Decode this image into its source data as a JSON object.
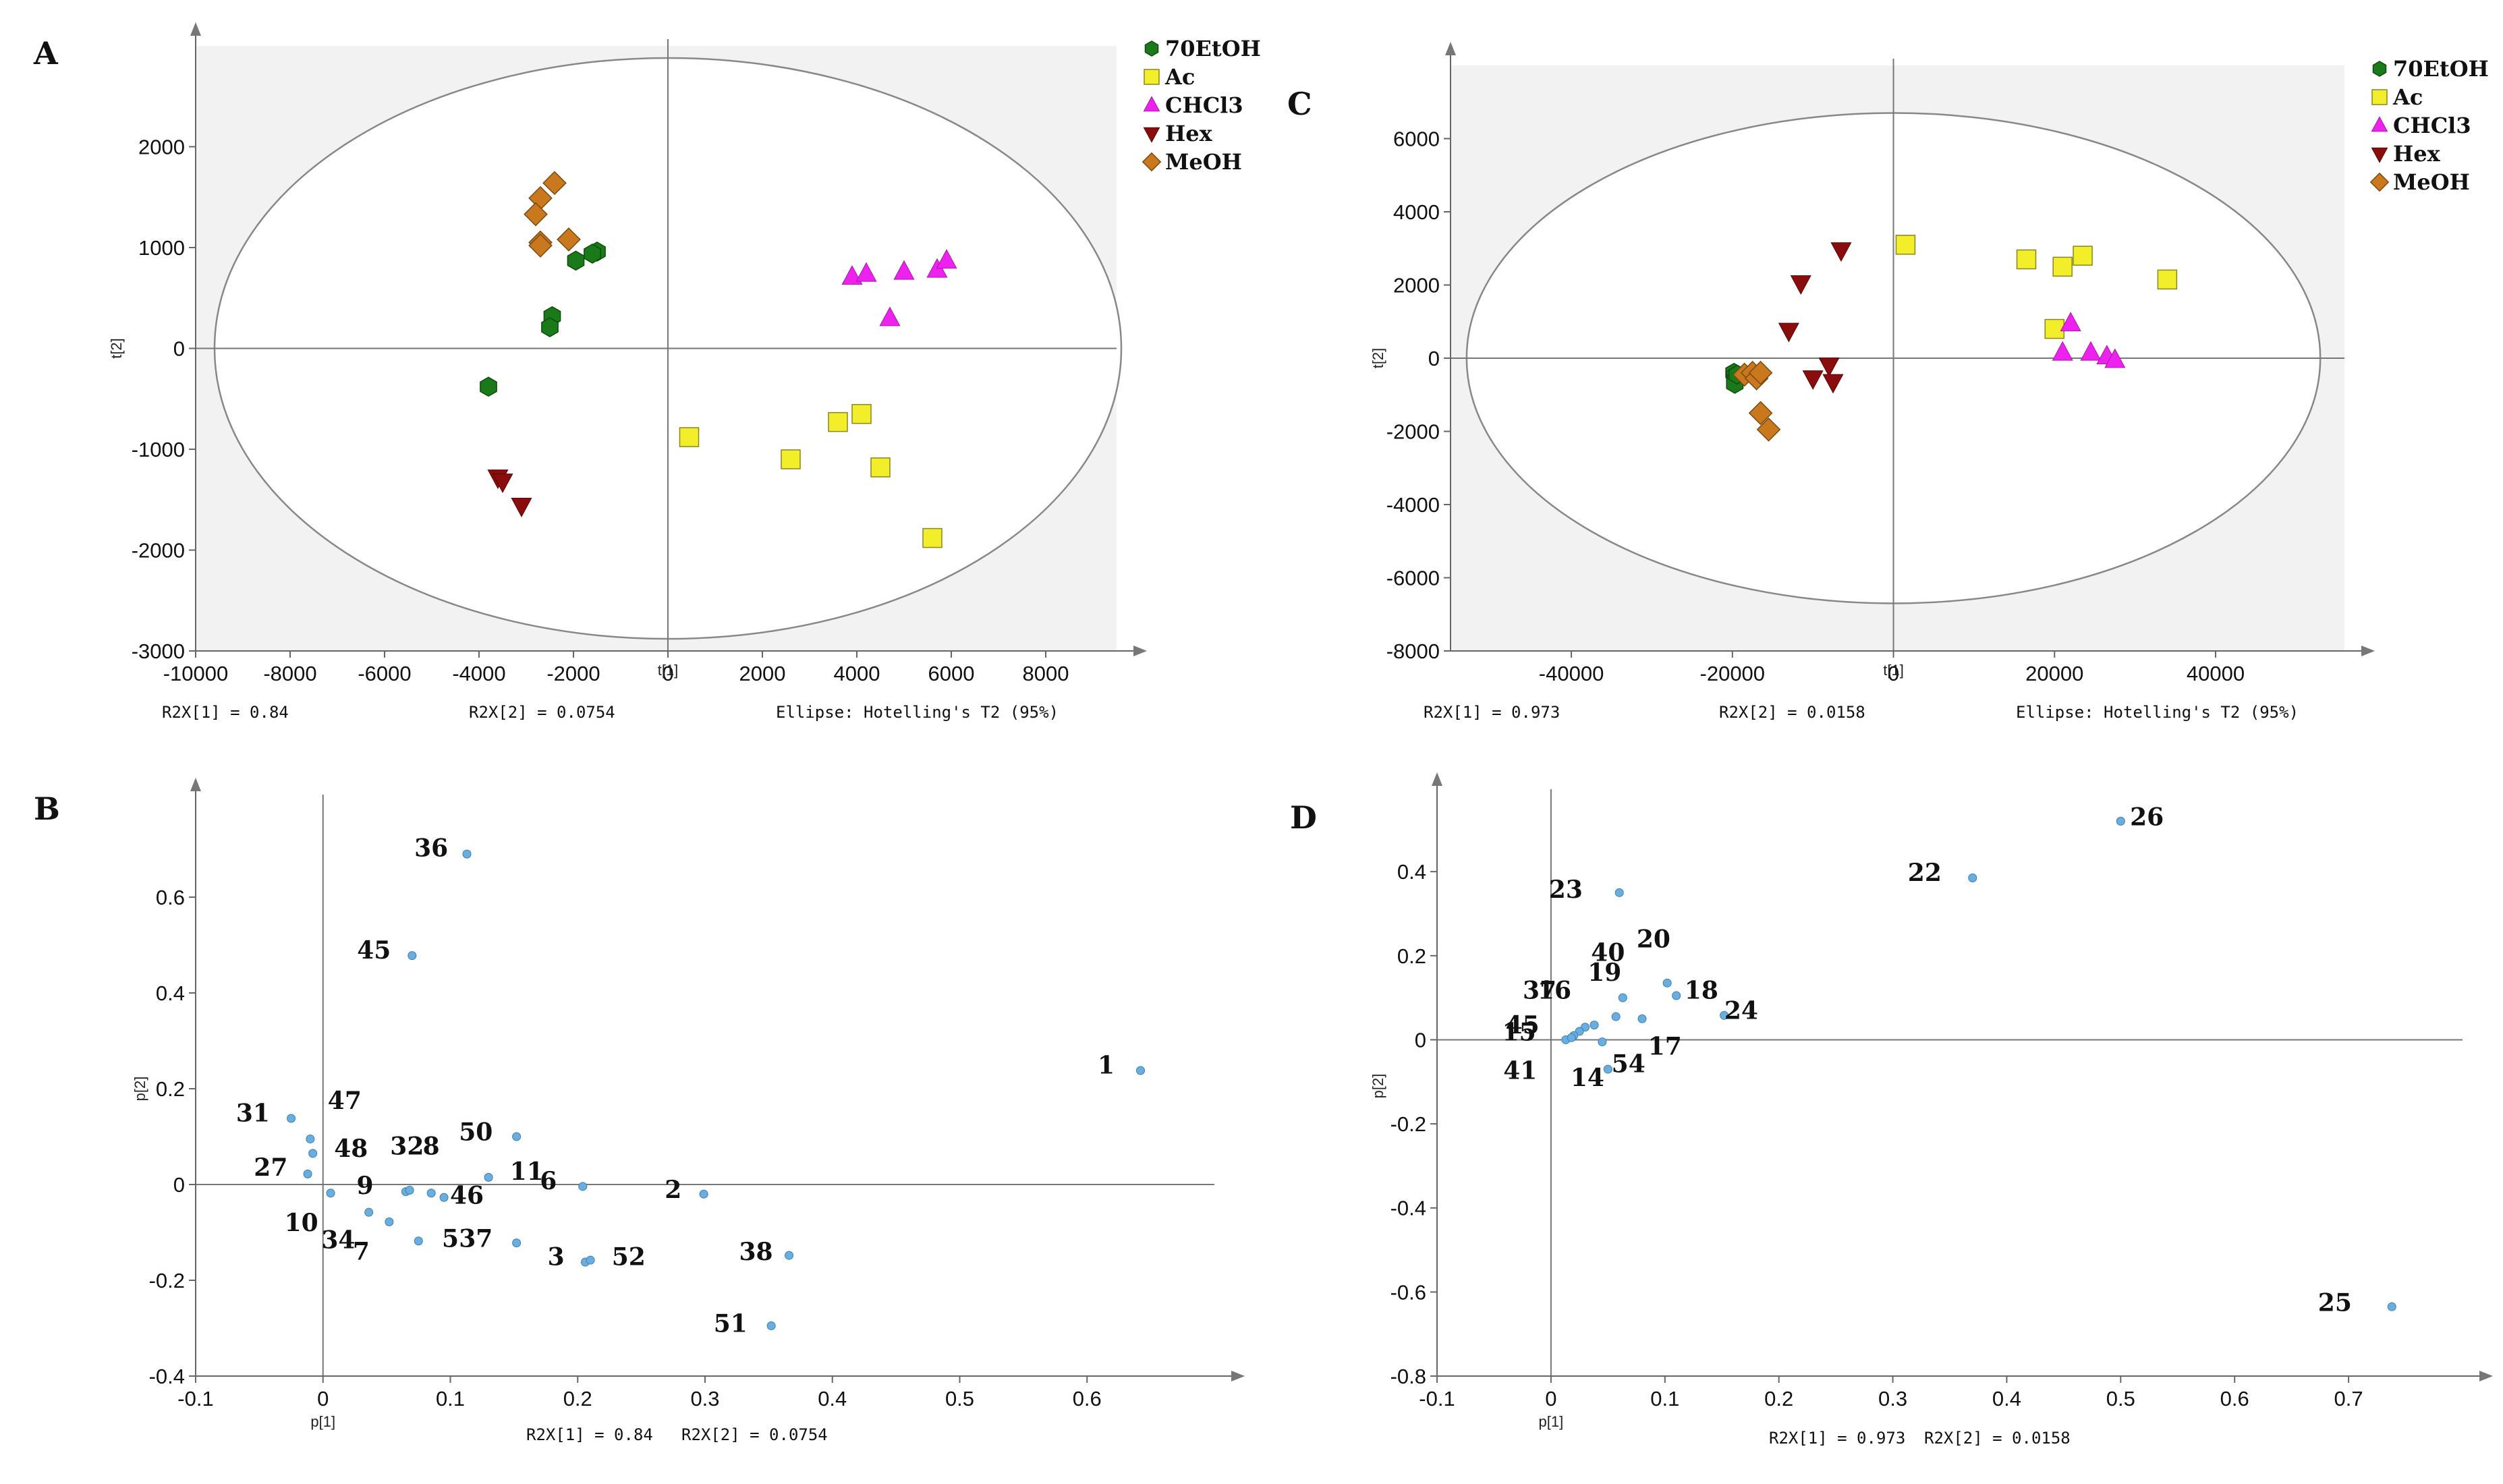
{
  "chart_data": [
    {
      "id": "A",
      "type": "scatter",
      "letter": "A",
      "xlabel": "t[1]",
      "ylabel": "t[2]",
      "xlim": [
        -10000,
        9500
      ],
      "ylim": [
        -3000,
        3000
      ],
      "xticks": [
        -10000,
        -8000,
        -6000,
        -4000,
        -2000,
        0,
        2000,
        4000,
        6000,
        8000
      ],
      "yticks": [
        -3000,
        -2000,
        -1000,
        0,
        1000,
        2000
      ],
      "ellipse": {
        "rx": 9600,
        "ry": 2880
      },
      "footer": {
        "r2x1": "R2X[1] = 0.84",
        "r2x2": "R2X[2] = 0.0754",
        "ellipse": "Ellipse: Hotelling's T2 (95%)"
      },
      "legend": [
        {
          "name": "70EtOH",
          "marker": "hexagon",
          "color": "#1a7a1a"
        },
        {
          "name": "Ac",
          "marker": "square",
          "color": "#f2ee2a"
        },
        {
          "name": "CHCl3",
          "marker": "triangle-up",
          "color": "#ee22ee"
        },
        {
          "name": "Hex",
          "marker": "triangle-down",
          "color": "#8a0d0d"
        },
        {
          "name": "MeOH",
          "marker": "diamond",
          "color": "#c9781e"
        }
      ],
      "series": [
        {
          "name": "70EtOH",
          "points": [
            [
              -1500,
              960
            ],
            [
              -1600,
              940
            ],
            [
              -1950,
              870
            ],
            [
              -2450,
              320
            ],
            [
              -2500,
              210
            ],
            [
              -3800,
              -380
            ]
          ]
        },
        {
          "name": "Ac",
          "points": [
            [
              450,
              -880
            ],
            [
              2600,
              -1100
            ],
            [
              3600,
              -730
            ],
            [
              4100,
              -650
            ],
            [
              4500,
              -1180
            ],
            [
              5600,
              -1880
            ]
          ]
        },
        {
          "name": "CHCl3",
          "points": [
            [
              3900,
              710
            ],
            [
              4200,
              740
            ],
            [
              5000,
              760
            ],
            [
              5700,
              780
            ],
            [
              5900,
              870
            ],
            [
              4700,
              300
            ]
          ]
        },
        {
          "name": "Hex",
          "points": [
            [
              -3600,
              -1280
            ],
            [
              -3500,
              -1320
            ],
            [
              -3100,
              -1560
            ]
          ]
        },
        {
          "name": "MeOH",
          "points": [
            [
              -2400,
              1640
            ],
            [
              -2700,
              1490
            ],
            [
              -2800,
              1330
            ],
            [
              -2100,
              1080
            ],
            [
              -2700,
              1050
            ],
            [
              -2700,
              1020
            ]
          ]
        }
      ]
    },
    {
      "id": "C",
      "type": "scatter",
      "letter": "C",
      "xlabel": "t[1]",
      "ylabel": "t[2]",
      "xlim": [
        -55000,
        56000
      ],
      "ylim": [
        -8000,
        8000
      ],
      "xticks": [
        -40000,
        -20000,
        0,
        20000,
        40000
      ],
      "yticks": [
        -8000,
        -6000,
        -4000,
        -2000,
        0,
        2000,
        4000,
        6000
      ],
      "ellipse": {
        "rx": 53000,
        "ry": 6700
      },
      "footer": {
        "r2x1": "R2X[1] = 0.973",
        "r2x2": "R2X[2] = 0.0158",
        "ellipse": "Ellipse: Hotelling's T2 (95%)"
      },
      "legend": [
        {
          "name": "70EtOH",
          "marker": "hexagon",
          "color": "#1a7a1a"
        },
        {
          "name": "Ac",
          "marker": "square",
          "color": "#f2ee2a"
        },
        {
          "name": "CHCl3",
          "marker": "triangle-up",
          "color": "#ee22ee"
        },
        {
          "name": "Hex",
          "marker": "triangle-down",
          "color": "#8a0d0d"
        },
        {
          "name": "MeOH",
          "marker": "diamond",
          "color": "#c9781e"
        }
      ],
      "series": [
        {
          "name": "70EtOH",
          "points": [
            [
              -19800,
              -400
            ],
            [
              -19700,
              -500
            ],
            [
              -19600,
              -600
            ],
            [
              -19700,
              -700
            ],
            [
              -19400,
              -450
            ]
          ]
        },
        {
          "name": "Ac",
          "points": [
            [
              1500,
              3100
            ],
            [
              16500,
              2700
            ],
            [
              21000,
              2500
            ],
            [
              23500,
              2800
            ],
            [
              34000,
              2150
            ],
            [
              20000,
              800
            ]
          ]
        },
        {
          "name": "CHCl3",
          "points": [
            [
              22000,
              950
            ],
            [
              21000,
              150
            ],
            [
              24500,
              150
            ],
            [
              26500,
              50
            ],
            [
              27500,
              -50
            ]
          ]
        },
        {
          "name": "Hex",
          "points": [
            [
              -6500,
              2950
            ],
            [
              -11500,
              2050
            ],
            [
              -13000,
              750
            ],
            [
              -8000,
              -200
            ],
            [
              -10000,
              -550
            ],
            [
              -7500,
              -650
            ]
          ]
        },
        {
          "name": "MeOH",
          "points": [
            [
              -18500,
              -450
            ],
            [
              -17500,
              -400
            ],
            [
              -17000,
              -550
            ],
            [
              -16500,
              -400
            ],
            [
              -16500,
              -1500
            ],
            [
              -15500,
              -1950
            ]
          ]
        }
      ]
    },
    {
      "id": "B",
      "type": "scatter",
      "letter": "B",
      "xlabel": "p[1]",
      "ylabel": "p[2]",
      "xlim": [
        -0.1,
        0.7
      ],
      "ylim": [
        -0.4,
        0.8
      ],
      "xticks": [
        -0.1,
        0,
        0.1,
        0.2,
        0.3,
        0.4,
        0.5,
        0.6
      ],
      "xtick_labels": [
        "-0.1",
        "0",
        "0.1",
        "0.2",
        "0.3",
        "0.4",
        "0.5",
        "0.6"
      ],
      "yticks": [
        -0.4,
        -0.2,
        0,
        0.2,
        0.4,
        0.6
      ],
      "ytick_labels": [
        "-0.4",
        "-0.2",
        "0",
        "0.2",
        "0.4",
        "0.6"
      ],
      "footer": {
        "r2x1": "R2X[1] = 0.84",
        "r2x2": "R2X[2] = 0.0754"
      },
      "point_color": "#6aaee0",
      "points": [
        [
          0.113,
          0.69
        ],
        [
          0.07,
          0.478
        ],
        [
          0.642,
          0.238
        ],
        [
          -0.025,
          0.138
        ],
        [
          -0.01,
          0.095
        ],
        [
          -0.008,
          0.065
        ],
        [
          -0.012,
          0.022
        ],
        [
          0.006,
          -0.018
        ],
        [
          0.152,
          0.1
        ],
        [
          0.13,
          0.015
        ],
        [
          0.204,
          -0.004
        ],
        [
          0.299,
          -0.02
        ],
        [
          0.065,
          -0.015
        ],
        [
          0.068,
          -0.012
        ],
        [
          0.085,
          -0.018
        ],
        [
          0.095,
          -0.027
        ],
        [
          0.036,
          -0.058
        ],
        [
          0.052,
          -0.078
        ],
        [
          0.075,
          -0.118
        ],
        [
          0.152,
          -0.122
        ],
        [
          0.206,
          -0.162
        ],
        [
          0.21,
          -0.158
        ],
        [
          0.366,
          -0.148
        ],
        [
          0.352,
          -0.295
        ]
      ],
      "labels": [
        {
          "text": "36",
          "x": 0.085,
          "y": 0.685
        },
        {
          "text": "45",
          "x": 0.04,
          "y": 0.472
        },
        {
          "text": "1",
          "x": 0.615,
          "y": 0.232
        },
        {
          "text": "31",
          "x": -0.055,
          "y": 0.132
        },
        {
          "text": "47",
          "x": 0.017,
          "y": 0.158
        },
        {
          "text": "48",
          "x": 0.022,
          "y": 0.058
        },
        {
          "text": "32",
          "x": 0.066,
          "y": 0.063
        },
        {
          "text": "8",
          "x": 0.085,
          "y": 0.063
        },
        {
          "text": "50",
          "x": 0.12,
          "y": 0.092
        },
        {
          "text": "27",
          "x": -0.041,
          "y": 0.018
        },
        {
          "text": "9",
          "x": 0.033,
          "y": -0.02
        },
        {
          "text": "11",
          "x": 0.16,
          "y": 0.01
        },
        {
          "text": "6",
          "x": 0.177,
          "y": -0.01
        },
        {
          "text": "46",
          "x": 0.113,
          "y": -0.04
        },
        {
          "text": "2",
          "x": 0.275,
          "y": -0.028
        },
        {
          "text": "10",
          "x": -0.017,
          "y": -0.097
        },
        {
          "text": "34",
          "x": 0.012,
          "y": -0.133
        },
        {
          "text": "7",
          "x": 0.03,
          "y": -0.157
        },
        {
          "text": "5",
          "x": 0.1,
          "y": -0.13
        },
        {
          "text": "37",
          "x": 0.12,
          "y": -0.13
        },
        {
          "text": "3",
          "x": 0.183,
          "y": -0.168
        },
        {
          "text": "52",
          "x": 0.24,
          "y": -0.168
        },
        {
          "text": "38",
          "x": 0.34,
          "y": -0.158
        },
        {
          "text": "51",
          "x": 0.32,
          "y": -0.308
        }
      ]
    },
    {
      "id": "D",
      "type": "scatter",
      "letter": "D",
      "xlabel": "p[1]",
      "ylabel": "p[2]",
      "xlim": [
        -0.1,
        0.8
      ],
      "ylim": [
        -0.8,
        0.58
      ],
      "xticks": [
        -0.1,
        0,
        0.1,
        0.2,
        0.3,
        0.4,
        0.5,
        0.6,
        0.7
      ],
      "xtick_labels": [
        "-0.1",
        "0",
        "0.1",
        "0.2",
        "0.3",
        "0.4",
        "0.5",
        "0.6",
        "0.7"
      ],
      "yticks": [
        -0.8,
        -0.6,
        -0.4,
        -0.2,
        0,
        0.2,
        0.4
      ],
      "ytick_labels": [
        "-0.8",
        "-0.6",
        "-0.4",
        "-0.2",
        "0",
        "0.2",
        "0.4"
      ],
      "footer": {
        "r2x1": "R2X[1] = 0.973",
        "r2x2": "R2X[2] = 0.0158"
      },
      "point_color": "#6aaee0",
      "points": [
        [
          0.5,
          0.52
        ],
        [
          0.37,
          0.385
        ],
        [
          0.06,
          0.35
        ],
        [
          0.102,
          0.135
        ],
        [
          0.11,
          0.105
        ],
        [
          0.152,
          0.058
        ],
        [
          0.063,
          0.1
        ],
        [
          0.057,
          0.055
        ],
        [
          0.08,
          0.05
        ],
        [
          0.038,
          0.035
        ],
        [
          0.03,
          0.03
        ],
        [
          0.025,
          0.02
        ],
        [
          0.02,
          0.01
        ],
        [
          0.013,
          0.0
        ],
        [
          0.018,
          0.005
        ],
        [
          0.045,
          -0.005
        ],
        [
          0.05,
          -0.07
        ],
        [
          0.738,
          -0.635
        ]
      ],
      "labels": [
        {
          "text": "26",
          "x": 0.523,
          "y": 0.51
        },
        {
          "text": "22",
          "x": 0.328,
          "y": 0.378
        },
        {
          "text": "23",
          "x": 0.013,
          "y": 0.338
        },
        {
          "text": "20",
          "x": 0.09,
          "y": 0.22
        },
        {
          "text": "40",
          "x": 0.05,
          "y": 0.188
        },
        {
          "text": "19",
          "x": 0.047,
          "y": 0.14
        },
        {
          "text": "18",
          "x": 0.132,
          "y": 0.098
        },
        {
          "text": "24",
          "x": 0.167,
          "y": 0.05
        },
        {
          "text": "37",
          "x": -0.01,
          "y": 0.098
        },
        {
          "text": "16",
          "x": 0.003,
          "y": 0.098
        },
        {
          "text": "45",
          "x": -0.025,
          "y": 0.015
        },
        {
          "text": "15",
          "x": -0.028,
          "y": -0.002
        },
        {
          "text": "17",
          "x": 0.1,
          "y": -0.035
        },
        {
          "text": "54",
          "x": 0.068,
          "y": -0.077
        },
        {
          "text": "14",
          "x": 0.032,
          "y": -0.11
        },
        {
          "text": "41",
          "x": -0.027,
          "y": -0.093
        },
        {
          "text": "25",
          "x": 0.688,
          "y": -0.645
        }
      ]
    }
  ]
}
